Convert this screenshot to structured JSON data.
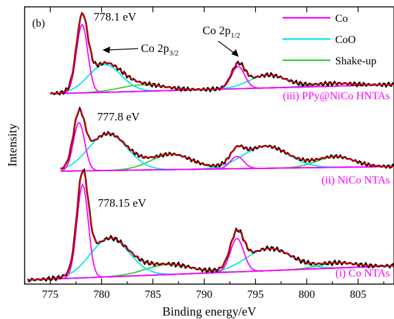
{
  "chart_data": {
    "type": "line",
    "panel_label": "(b)",
    "xlabel": "Binding energy/eV",
    "ylabel": "Intensity",
    "xlim": [
      772.5,
      808.5
    ],
    "x_ticks": [
      775,
      780,
      785,
      790,
      795,
      800,
      805
    ],
    "y_ticks_shown": false,
    "legend": {
      "position": "top-right",
      "entries": [
        {
          "label": "Co",
          "color": "#ff00ff"
        },
        {
          "label": "CoO",
          "color": "#00e5ee"
        },
        {
          "label": "Shake-up",
          "color": "#33cc33"
        }
      ]
    },
    "colors": {
      "raw": "#000000",
      "envelope": "#ff0000",
      "Co": "#ff00ff",
      "CoO": "#00e5ee",
      "Shake-up": "#33cc33"
    },
    "annotations": {
      "co_2p32": {
        "label": "Co 2p",
        "sub": "3/2",
        "x": 778.7
      },
      "co_2p12": {
        "label": "Co 2p",
        "sub": "1/2",
        "x": 793.3
      }
    },
    "samples": [
      {
        "name": "(iii) PPy@NiCo HNTAs",
        "label_color": "#ff00ff",
        "peak_label": "778.1 eV",
        "baseline_start": 0.0,
        "baseline_end": 0.1,
        "components": {
          "Co": [
            {
              "center": 778.1,
              "height": 0.74,
              "width": 0.55
            },
            {
              "center": 793.3,
              "height": 0.24,
              "width": 0.65
            }
          ],
          "CoO": [
            {
              "center": 780.3,
              "height": 0.3,
              "width": 1.6
            },
            {
              "center": 796.2,
              "height": 0.14,
              "width": 1.8
            }
          ],
          "Shake-up": [
            {
              "center": 784.0,
              "height": 0.07,
              "width": 2.2
            },
            {
              "center": 802.5,
              "height": 0.03,
              "width": 2.0
            }
          ]
        }
      },
      {
        "name": "(ii) NiCo NTAs",
        "label_color": "#ff00ff",
        "peak_label": "777.8 eV",
        "baseline_start": 0.0,
        "baseline_end": 0.06,
        "components": {
          "Co": [
            {
              "center": 777.8,
              "height": 0.63,
              "width": 0.55
            },
            {
              "center": 793.2,
              "height": 0.16,
              "width": 0.65
            }
          ],
          "CoO": [
            {
              "center": 780.6,
              "height": 0.48,
              "width": 1.9
            },
            {
              "center": 796.0,
              "height": 0.29,
              "width": 2.2
            }
          ],
          "Shake-up": [
            {
              "center": 786.8,
              "height": 0.2,
              "width": 2.0
            },
            {
              "center": 802.8,
              "height": 0.14,
              "width": 1.8
            }
          ]
        }
      },
      {
        "name": "(i) Co NTAs",
        "label_color": "#ff00ff",
        "peak_label": "778.15 eV",
        "baseline_start": 0.0,
        "baseline_end": 0.14,
        "components": {
          "Co": [
            {
              "center": 778.15,
              "height": 0.92,
              "width": 0.55
            },
            {
              "center": 793.2,
              "height": 0.33,
              "width": 0.65
            }
          ],
          "CoO": [
            {
              "center": 780.8,
              "height": 0.38,
              "width": 1.9
            },
            {
              "center": 796.3,
              "height": 0.22,
              "width": 2.2
            }
          ],
          "Shake-up": [
            {
              "center": 786.5,
              "height": 0.1,
              "width": 2.2
            },
            {
              "center": 803.0,
              "height": 0.05,
              "width": 1.8
            }
          ]
        }
      }
    ]
  }
}
